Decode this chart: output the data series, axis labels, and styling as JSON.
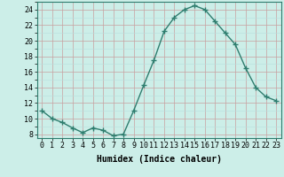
{
  "x": [
    0,
    1,
    2,
    3,
    4,
    5,
    6,
    7,
    8,
    9,
    10,
    11,
    12,
    13,
    14,
    15,
    16,
    17,
    18,
    19,
    20,
    21,
    22,
    23
  ],
  "y": [
    11.0,
    10.0,
    9.5,
    8.8,
    8.2,
    8.8,
    8.5,
    7.8,
    8.0,
    11.0,
    14.3,
    17.5,
    21.2,
    23.0,
    24.0,
    24.5,
    24.0,
    22.5,
    21.0,
    19.5,
    16.5,
    14.0,
    12.8,
    12.3
  ],
  "line_color": "#2e7d6e",
  "marker": "+",
  "marker_size": 4,
  "marker_lw": 1.0,
  "bg_color": "#cceee8",
  "grid_major_color": "#c8a0a0",
  "grid_minor_color": "#b8dede",
  "xlabel": "Humidex (Indice chaleur)",
  "xlim": [
    -0.5,
    23.5
  ],
  "ylim": [
    7.5,
    25.0
  ],
  "yticks": [
    8,
    10,
    12,
    14,
    16,
    18,
    20,
    22,
    24
  ],
  "xticks": [
    0,
    1,
    2,
    3,
    4,
    5,
    6,
    7,
    8,
    9,
    10,
    11,
    12,
    13,
    14,
    15,
    16,
    17,
    18,
    19,
    20,
    21,
    22,
    23
  ],
  "xlabel_fontsize": 7,
  "tick_fontsize": 6,
  "linewidth": 1.0
}
